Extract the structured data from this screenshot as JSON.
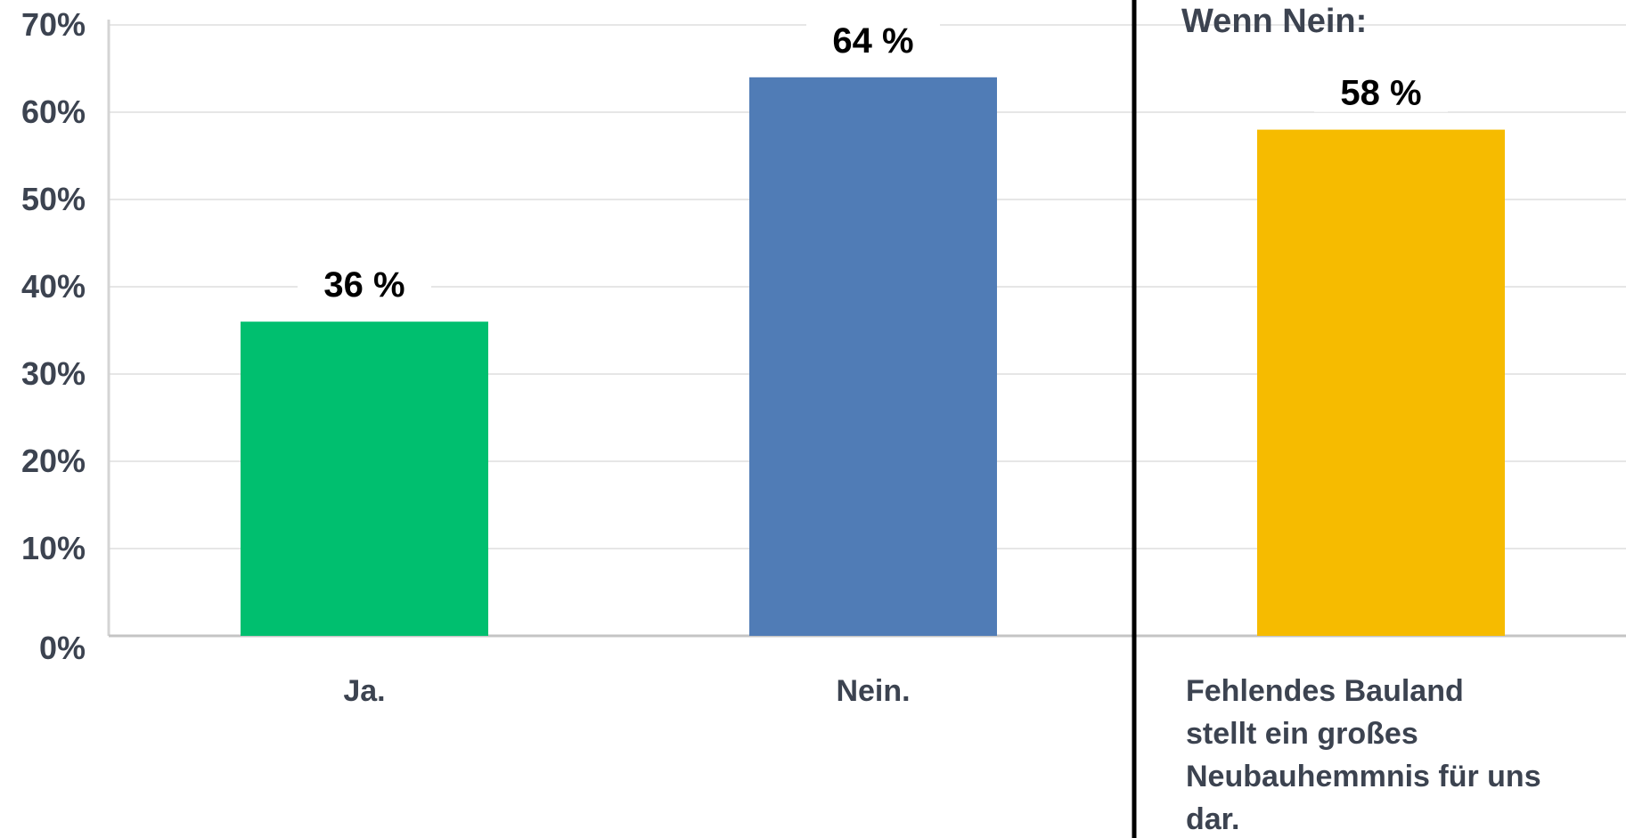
{
  "chart_data": {
    "type": "bar",
    "categories": [
      "Ja.",
      "Nein.",
      "Fehlendes Bauland stellt ein großes Neubauhemmnis für uns dar."
    ],
    "values": [
      36,
      64,
      58
    ],
    "value_labels": [
      "36 %",
      "64 %",
      "58 %"
    ],
    "colors": [
      "#00bf6f",
      "#507cb6",
      "#f6bb00"
    ],
    "y_tick_labels": [
      "0%",
      "10%",
      "20%",
      "30%",
      "40%",
      "50%",
      "60%",
      "70%"
    ],
    "ylim": [
      0,
      70
    ],
    "grid": true,
    "annotation": "Wenn Nein:",
    "category_label_lines": [
      [
        "Ja."
      ],
      [
        "Nein."
      ],
      [
        "Fehlendes Bauland",
        "stellt ein großes",
        "Neubauhemmnis für uns",
        "dar."
      ]
    ]
  }
}
